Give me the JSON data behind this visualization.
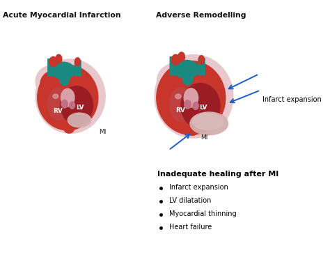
{
  "title_left": "Acute Myocardial Infarction",
  "title_right": "Adverse Remodelling",
  "label_RV_left": "RV",
  "label_LV_left": "LV",
  "label_MI_left": "MI",
  "label_RV_right": "RV",
  "label_LV_right": "LV",
  "label_MI_right": "MI",
  "label_infarct": "Infarct expansion",
  "bullet_title": "Inadequate healing after MI",
  "bullets": [
    "Infarct expansion",
    "LV dilatation",
    "Myocardial thinning",
    "Heart failure"
  ],
  "bg_color": "#ffffff",
  "heart_red": "#c8352a",
  "heart_dark_red": "#9b1c22",
  "heart_pink": "#d9a0a8",
  "heart_light_pink": "#e8c8cc",
  "heart_mid_pink": "#c07080",
  "teal_dark": "#1a8a80",
  "teal_light": "#2ab0a0",
  "arrow_color": "#1a5fc8",
  "text_color": "#000000",
  "mi_pale": "#d4b0b0"
}
